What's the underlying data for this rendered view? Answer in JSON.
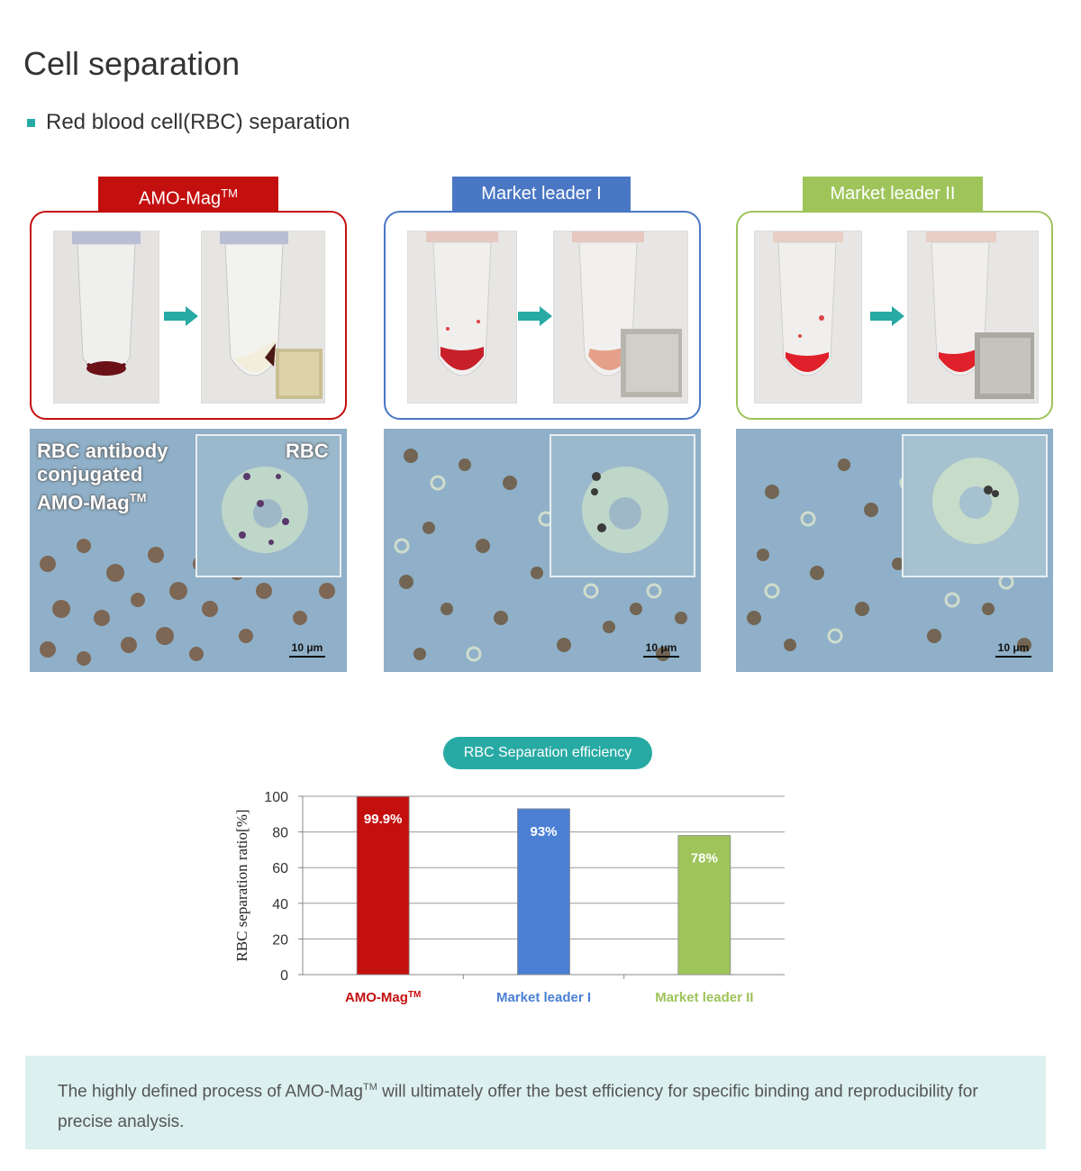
{
  "page": {
    "title": "Cell separation",
    "subtitle": "Red blood cell(RBC) separation"
  },
  "panels": [
    {
      "label": "AMO-Mag",
      "label_sup": "TM",
      "color": "#c40f0f",
      "scale": "10 μm",
      "annotation_top": "RBC",
      "annotation_main": [
        "RBC antibody",
        "conjugated",
        "AMO-Mag"
      ],
      "annotation_sup": "TM"
    },
    {
      "label": "Market leader I",
      "label_sup": "",
      "color": "#4a77c4",
      "scale": "10 μm"
    },
    {
      "label": "Market leader II",
      "label_sup": "",
      "color": "#9ec45a",
      "scale": "10 μm"
    }
  ],
  "chart_title": "RBC Separation efficiency",
  "chart_data": {
    "type": "bar",
    "categories": [
      "AMO-Mag",
      "Market leader I",
      "Market leader II"
    ],
    "category_sup": [
      "TM",
      "",
      ""
    ],
    "values": [
      99.9,
      93,
      78
    ],
    "data_labels": [
      "99.9%",
      "93%",
      "78%"
    ],
    "colors": [
      "#c40f0f",
      "#4a7fd4",
      "#9ec45a"
    ],
    "ylabel": "RBC separation ratio[%]",
    "ylim": [
      0,
      100
    ],
    "yticks": [
      0,
      20,
      40,
      60,
      80,
      100
    ],
    "grid": true
  },
  "footer": {
    "text_before": "The highly defined process of AMO-Mag",
    "sup": "TM",
    "text_after": " will ultimately offer the best efficiency for specific binding and reproducibility for precise analysis."
  }
}
